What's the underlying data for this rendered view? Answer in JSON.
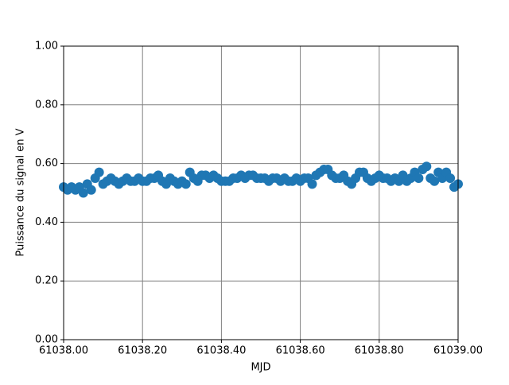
{
  "chart_data": {
    "type": "scatter",
    "xlabel": "MJD",
    "ylabel": "Puissance du signal en V",
    "series": [
      {
        "color": "#1f77b4",
        "x": [
          61038,
          61038.01,
          61038.02,
          61038.03,
          61038.04,
          61038.05,
          61038.06,
          61038.07,
          61038.08,
          61038.09,
          61038.1,
          61038.11,
          61038.12,
          61038.13,
          61038.14,
          61038.15,
          61038.16,
          61038.17,
          61038.18,
          61038.19,
          61038.2,
          61038.21,
          61038.22,
          61038.23,
          61038.24,
          61038.25,
          61038.26,
          61038.27,
          61038.28,
          61038.29,
          61038.3,
          61038.31,
          61038.32,
          61038.33,
          61038.34,
          61038.35,
          61038.36,
          61038.37,
          61038.38,
          61038.39,
          61038.4,
          61038.41,
          61038.42,
          61038.43,
          61038.44,
          61038.45,
          61038.46,
          61038.47,
          61038.48,
          61038.49,
          61038.5,
          61038.51,
          61038.52,
          61038.53,
          61038.54,
          61038.55,
          61038.56,
          61038.57,
          61038.58,
          61038.59,
          61038.6,
          61038.61,
          61038.62,
          61038.63,
          61038.64,
          61038.65,
          61038.66,
          61038.67,
          61038.68,
          61038.69,
          61038.7,
          61038.71,
          61038.72,
          61038.73,
          61038.74,
          61038.75,
          61038.76,
          61038.77,
          61038.78,
          61038.79,
          61038.8,
          61038.81,
          61038.82,
          61038.83,
          61038.84,
          61038.85,
          61038.86,
          61038.87,
          61038.88,
          61038.89,
          61038.9,
          61038.91,
          61038.92,
          61038.93,
          61038.94,
          61038.95,
          61038.96,
          61038.97,
          61038.98,
          61038.99,
          61039
        ],
        "values": [
          0.52,
          0.51,
          0.52,
          0.51,
          0.52,
          0.5,
          0.53,
          0.51,
          0.55,
          0.57,
          0.53,
          0.54,
          0.55,
          0.54,
          0.53,
          0.54,
          0.55,
          0.54,
          0.54,
          0.55,
          0.54,
          0.54,
          0.55,
          0.55,
          0.56,
          0.54,
          0.53,
          0.55,
          0.54,
          0.53,
          0.54,
          0.53,
          0.57,
          0.55,
          0.54,
          0.56,
          0.56,
          0.55,
          0.56,
          0.55,
          0.54,
          0.54,
          0.54,
          0.55,
          0.55,
          0.56,
          0.55,
          0.56,
          0.56,
          0.55,
          0.55,
          0.55,
          0.54,
          0.55,
          0.55,
          0.54,
          0.55,
          0.54,
          0.54,
          0.55,
          0.54,
          0.55,
          0.55,
          0.53,
          0.56,
          0.57,
          0.58,
          0.58,
          0.56,
          0.55,
          0.55,
          0.56,
          0.54,
          0.53,
          0.55,
          0.57,
          0.57,
          0.55,
          0.54,
          0.55,
          0.56,
          0.55,
          0.55,
          0.54,
          0.55,
          0.54,
          0.56,
          0.54,
          0.55,
          0.57,
          0.55,
          0.58,
          0.59,
          0.55,
          0.54,
          0.57,
          0.55,
          0.57,
          0.55,
          0.52,
          0.53
        ]
      }
    ],
    "xlim": [
      61038,
      61039
    ],
    "xticks": [
      {
        "value": 61038,
        "label": "61038.00"
      },
      {
        "value": 61038.2,
        "label": "61038.20"
      },
      {
        "value": 61038.4,
        "label": "61038.40"
      },
      {
        "value": 61038.6,
        "label": "61038.60"
      },
      {
        "value": 61038.8,
        "label": "61038.80"
      },
      {
        "value": 61039,
        "label": "61039.00"
      }
    ],
    "ylim": [
      0,
      1
    ],
    "yticks": [
      {
        "value": 0,
        "label": "0.00"
      },
      {
        "value": 0.2,
        "label": "0.20"
      },
      {
        "value": 0.4,
        "label": "0.40"
      },
      {
        "value": 0.6,
        "label": "0.60"
      },
      {
        "value": 0.8,
        "label": "0.80"
      },
      {
        "value": 1,
        "label": "1.00"
      }
    ],
    "grid": true
  }
}
